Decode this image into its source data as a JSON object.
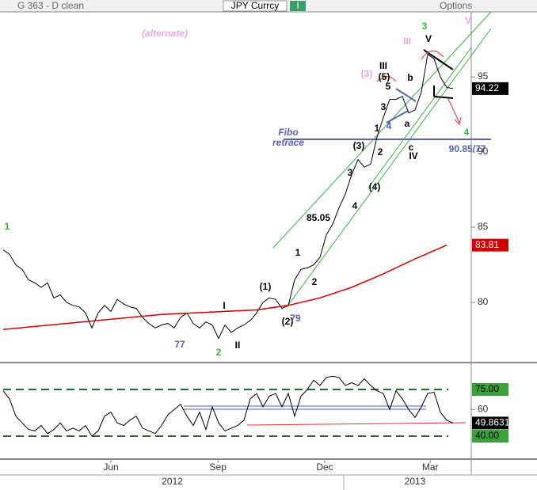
{
  "header": {
    "left": "G 363 - D clean",
    "symbol": "JPY Currcy",
    "interval": "I",
    "options": "Options"
  },
  "chart_data": [
    {
      "type": "line",
      "panel": "price",
      "xlim": [
        -0.5,
        73.875
      ],
      "ylim": [
        76.16,
        99.32
      ],
      "yticks": [
        80,
        85,
        90,
        95
      ],
      "xticks": [
        {
          "value": 17,
          "label": "Jun"
        },
        {
          "value": 33.9,
          "label": "Sep"
        },
        {
          "value": 50.75,
          "label": "Dec"
        },
        {
          "value": 67.4,
          "label": "Mar"
        }
      ],
      "years": [
        {
          "value": 26.7,
          "label": "2012"
        },
        {
          "value": 65,
          "label": "2013"
        }
      ],
      "series": [
        {
          "name": "JPY Currcy",
          "color": "#000000",
          "x": [
            0,
            1,
            2,
            3,
            4,
            5,
            6,
            7,
            8,
            9,
            10,
            11,
            12,
            13,
            14,
            15,
            16,
            17,
            18,
            19,
            20,
            21,
            22,
            23,
            24,
            25,
            26,
            27,
            28,
            29,
            30,
            31,
            32,
            33,
            34,
            35,
            36,
            37,
            38,
            39,
            40,
            41,
            42,
            43,
            44,
            45,
            46,
            47,
            48,
            49,
            50,
            51,
            52,
            53,
            54,
            55,
            56,
            57,
            58,
            59,
            60,
            61,
            62,
            63,
            64,
            65,
            66,
            67,
            68,
            69,
            70,
            71
          ],
          "values": [
            83.5,
            83.2,
            82.5,
            82.2,
            81.5,
            81.3,
            81,
            81.3,
            80.3,
            80.5,
            80,
            79.8,
            79.7,
            79.3,
            78.3,
            79.3,
            79.8,
            79.4,
            80.2,
            79.9,
            79.7,
            79.6,
            79,
            78.6,
            78.3,
            78.5,
            78.6,
            78.3,
            79,
            79.3,
            78.6,
            78.3,
            78.7,
            78.5,
            77.6,
            78.5,
            78,
            78.3,
            78.5,
            78.8,
            79.3,
            80,
            80.3,
            80.2,
            79.6,
            79.8,
            81.5,
            82.2,
            82.3,
            82.5,
            83,
            84.5,
            85.2,
            86.3,
            87.2,
            88.5,
            89.5,
            89,
            89.2,
            91,
            92.3,
            93.5,
            93.5,
            93.7,
            92.6,
            92.8,
            94,
            96.5,
            96.2,
            95,
            94.3,
            94.22
          ]
        },
        {
          "name": "MA",
          "color": "#cc0000",
          "x": [
            0,
            5,
            10,
            15,
            20,
            25,
            30,
            35,
            40,
            45,
            50,
            55,
            60,
            65,
            70
          ],
          "values": [
            78.2,
            78.4,
            78.6,
            78.8,
            79.0,
            79.2,
            79.3,
            79.4,
            79.5,
            79.8,
            80.3,
            81.0,
            81.9,
            82.9,
            83.81
          ]
        }
      ],
      "price_label": 94.22,
      "ma_label": 83.81,
      "annotations": [
        {
          "text": "(alternate)",
          "color": "#e8a8e0"
        },
        {
          "text": "1",
          "color": "#3cb043"
        },
        {
          "text": "2",
          "color": "#3cb043"
        },
        {
          "text": "3",
          "color": "#3cb043"
        },
        {
          "text": "4",
          "color": "#3cb043"
        },
        {
          "text": "V",
          "color": "#e8a8e0"
        },
        {
          "text": "III",
          "color": "#e8a8e0"
        },
        {
          "text": "(3)",
          "color": "#e8a8e0"
        },
        {
          "text": "III",
          "color": "#000000"
        },
        {
          "text": "(5)",
          "color": "#000000"
        },
        {
          "text": "V",
          "color": "#000000"
        },
        {
          "text": "b",
          "color": "#000000"
        },
        {
          "text": "5",
          "color": "#000000"
        },
        {
          "text": "3",
          "color": "#000000"
        },
        {
          "text": "4",
          "color": "#5a62b0"
        },
        {
          "text": "a",
          "color": "#000000"
        },
        {
          "text": "c",
          "color": "#000000"
        },
        {
          "text": "IV",
          "color": "#000000"
        },
        {
          "text": "1",
          "color": "#000000"
        },
        {
          "text": "(3)",
          "color": "#000000"
        },
        {
          "text": "2",
          "color": "#000000"
        },
        {
          "text": "3",
          "color": "#000000"
        },
        {
          "text": "(4)",
          "color": "#000000"
        },
        {
          "text": "4",
          "color": "#000000"
        },
        {
          "text": "85.05",
          "color": "#000000"
        },
        {
          "text": "1",
          "color": "#000000"
        },
        {
          "text": "2",
          "color": "#000000"
        },
        {
          "text": "(1)",
          "color": "#000000"
        },
        {
          "text": "(2)",
          "color": "#000000"
        },
        {
          "text": "79",
          "color": "#5a62b0"
        },
        {
          "text": "I",
          "color": "#000000"
        },
        {
          "text": "II",
          "color": "#000000"
        },
        {
          "text": "77",
          "color": "#5a62b0"
        },
        {
          "text": "Fibo",
          "color": "#5a62b0"
        },
        {
          "text": "retrace",
          "color": "#5a62b0"
        },
        {
          "text": "90.85/77",
          "color": "#5a62b0"
        }
      ]
    },
    {
      "type": "line",
      "panel": "rsi",
      "xlim": [
        -0.5,
        73.875
      ],
      "ylim": [
        24,
        92.8
      ],
      "yticks": [
        60
      ],
      "levels": [
        {
          "value": 75,
          "label": "75.00"
        },
        {
          "value": 40,
          "label": "40.00"
        }
      ],
      "series": [
        {
          "name": "RSI",
          "color": "#000000",
          "x": [
            0,
            1,
            2,
            3,
            4,
            5,
            6,
            7,
            8,
            9,
            10,
            11,
            12,
            13,
            14,
            15,
            16,
            17,
            18,
            19,
            20,
            21,
            22,
            23,
            24,
            25,
            26,
            27,
            28,
            29,
            30,
            31,
            32,
            33,
            34,
            35,
            36,
            37,
            38,
            39,
            40,
            41,
            42,
            43,
            44,
            45,
            46,
            47,
            48,
            49,
            50,
            51,
            52,
            53,
            54,
            55,
            56,
            57,
            58,
            59,
            60,
            61,
            62,
            63,
            64,
            65,
            66,
            67,
            68,
            69,
            70,
            71
          ],
          "values": [
            74,
            68,
            55,
            50,
            45,
            44,
            48,
            42,
            45,
            50,
            44,
            46,
            44,
            48,
            40,
            44,
            55,
            58,
            50,
            48,
            52,
            55,
            46,
            44,
            42,
            48,
            56,
            60,
            64,
            55,
            48,
            58,
            45,
            62,
            50,
            44,
            46,
            48,
            52,
            68,
            72,
            62,
            70,
            72,
            62,
            72,
            55,
            70,
            75,
            82,
            78,
            84,
            85,
            84,
            78,
            80,
            78,
            83,
            78,
            74,
            72,
            60,
            74,
            68,
            60,
            54,
            62,
            72,
            73,
            58,
            52,
            49.8631
          ]
        }
      ],
      "rsi_label": 49.8631
    }
  ]
}
